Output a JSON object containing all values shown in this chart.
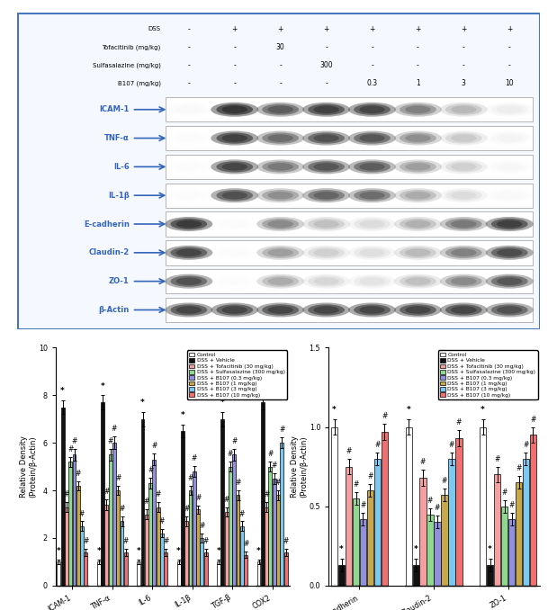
{
  "western_blot": {
    "row_labels": [
      "DSS",
      "Tofacitinib (mg/kg)",
      "Sulfasalazine (mg/kg)",
      "B107 (mg/kg)"
    ],
    "col_data": [
      [
        "-",
        "+",
        "+",
        "+",
        "+",
        "+",
        "+",
        "+"
      ],
      [
        "-",
        "-",
        "30",
        "-",
        "-",
        "-",
        "-",
        "-"
      ],
      [
        "-",
        "-",
        "-",
        "300",
        "-",
        "-",
        "-",
        "-"
      ],
      [
        "-",
        "-",
        "-",
        "-",
        "0.3",
        "1",
        "3",
        "10"
      ]
    ],
    "bands": [
      "ICAM-1",
      "TNF-α",
      "IL-6",
      "IL-1β",
      "E-cadherin",
      "Claudin-2",
      "ZO-1",
      "β-Actin"
    ],
    "band_intensities": [
      [
        0.1,
        0.92,
        0.78,
        0.88,
        0.86,
        0.65,
        0.45,
        0.2
      ],
      [
        0.08,
        0.88,
        0.72,
        0.82,
        0.8,
        0.6,
        0.38,
        0.15
      ],
      [
        0.08,
        0.86,
        0.68,
        0.8,
        0.78,
        0.55,
        0.35,
        0.12
      ],
      [
        0.08,
        0.82,
        0.6,
        0.75,
        0.72,
        0.5,
        0.3,
        0.1
      ],
      [
        0.9,
        0.08,
        0.62,
        0.42,
        0.3,
        0.48,
        0.68,
        0.88
      ],
      [
        0.86,
        0.08,
        0.55,
        0.35,
        0.28,
        0.44,
        0.65,
        0.84
      ],
      [
        0.82,
        0.08,
        0.5,
        0.32,
        0.25,
        0.42,
        0.62,
        0.8
      ],
      [
        0.86,
        0.86,
        0.86,
        0.86,
        0.86,
        0.86,
        0.86,
        0.82
      ]
    ],
    "border_color": "#4477bb",
    "bg_color": "#ffffff",
    "band_bg_color": "#f0f0f0",
    "band_bg_color2": "#e0e0e0"
  },
  "bar_chart1": {
    "categories": [
      "ICAM-1",
      "TNF-α",
      "IL-6",
      "IL-1β",
      "TGF-β",
      "COX2"
    ],
    "ylabel": "Relative Density\n(Protein/β-Actin)",
    "ylim": [
      0,
      10
    ],
    "yticks": [
      0,
      2,
      4,
      6,
      8,
      10
    ],
    "values": [
      [
        1.0,
        1.0,
        1.0,
        1.0,
        1.0,
        1.0
      ],
      [
        7.5,
        7.7,
        7.0,
        6.5,
        7.0,
        7.7
      ],
      [
        3.3,
        3.4,
        3.0,
        2.7,
        3.1,
        3.3
      ],
      [
        5.2,
        5.5,
        4.3,
        4.0,
        5.0,
        5.0
      ],
      [
        5.5,
        6.0,
        5.3,
        4.8,
        5.5,
        4.5
      ],
      [
        4.2,
        4.0,
        3.3,
        3.2,
        3.8,
        3.8
      ],
      [
        2.5,
        2.7,
        2.2,
        2.0,
        2.5,
        6.0
      ],
      [
        1.4,
        1.4,
        1.4,
        1.4,
        1.3,
        1.4
      ]
    ],
    "errors": [
      [
        0.08,
        0.08,
        0.08,
        0.08,
        0.08,
        0.08
      ],
      [
        0.3,
        0.3,
        0.3,
        0.28,
        0.3,
        0.3
      ],
      [
        0.22,
        0.22,
        0.2,
        0.2,
        0.2,
        0.22
      ],
      [
        0.22,
        0.24,
        0.22,
        0.2,
        0.22,
        0.22
      ],
      [
        0.25,
        0.26,
        0.24,
        0.22,
        0.24,
        0.24
      ],
      [
        0.2,
        0.2,
        0.2,
        0.18,
        0.2,
        0.2
      ],
      [
        0.2,
        0.2,
        0.18,
        0.18,
        0.2,
        0.22
      ],
      [
        0.14,
        0.14,
        0.14,
        0.14,
        0.13,
        0.14
      ]
    ]
  },
  "bar_chart2": {
    "categories": [
      "E-cadherin",
      "Claudin-2",
      "ZO-1"
    ],
    "ylabel": "Relative Density\n(Protein/β-Actin)",
    "ylim": [
      0.0,
      1.5
    ],
    "yticks": [
      0.0,
      0.5,
      1.0,
      1.5
    ],
    "values": [
      [
        1.0,
        1.0,
        1.0
      ],
      [
        0.13,
        0.13,
        0.13
      ],
      [
        0.75,
        0.68,
        0.7
      ],
      [
        0.55,
        0.45,
        0.5
      ],
      [
        0.42,
        0.4,
        0.42
      ],
      [
        0.6,
        0.57,
        0.65
      ],
      [
        0.8,
        0.8,
        0.8
      ],
      [
        0.97,
        0.93,
        0.95
      ]
    ],
    "errors": [
      [
        0.05,
        0.05,
        0.05
      ],
      [
        0.04,
        0.04,
        0.04
      ],
      [
        0.05,
        0.05,
        0.05
      ],
      [
        0.04,
        0.04,
        0.04
      ],
      [
        0.04,
        0.04,
        0.04
      ],
      [
        0.04,
        0.04,
        0.04
      ],
      [
        0.04,
        0.04,
        0.04
      ],
      [
        0.05,
        0.05,
        0.05
      ]
    ]
  },
  "bar_colors": [
    "#ffffff",
    "#111111",
    "#f4a0a0",
    "#90d890",
    "#9090dd",
    "#c8a84b",
    "#7bc8f0",
    "#f07070"
  ],
  "legend_labels": [
    "Control",
    "DSS + Vehicle",
    "DSS + Tofacitinib (30 mg/kg)",
    "DSS + Sulfasalazine (300 mg/kg)",
    "DSS + B107 (0.3 mg/kg)",
    "DSS + B107 (1 mg/kg)",
    "DSS + B107 (3 mg/kg)",
    "DSS + B107 (10 mg/kg)"
  ]
}
